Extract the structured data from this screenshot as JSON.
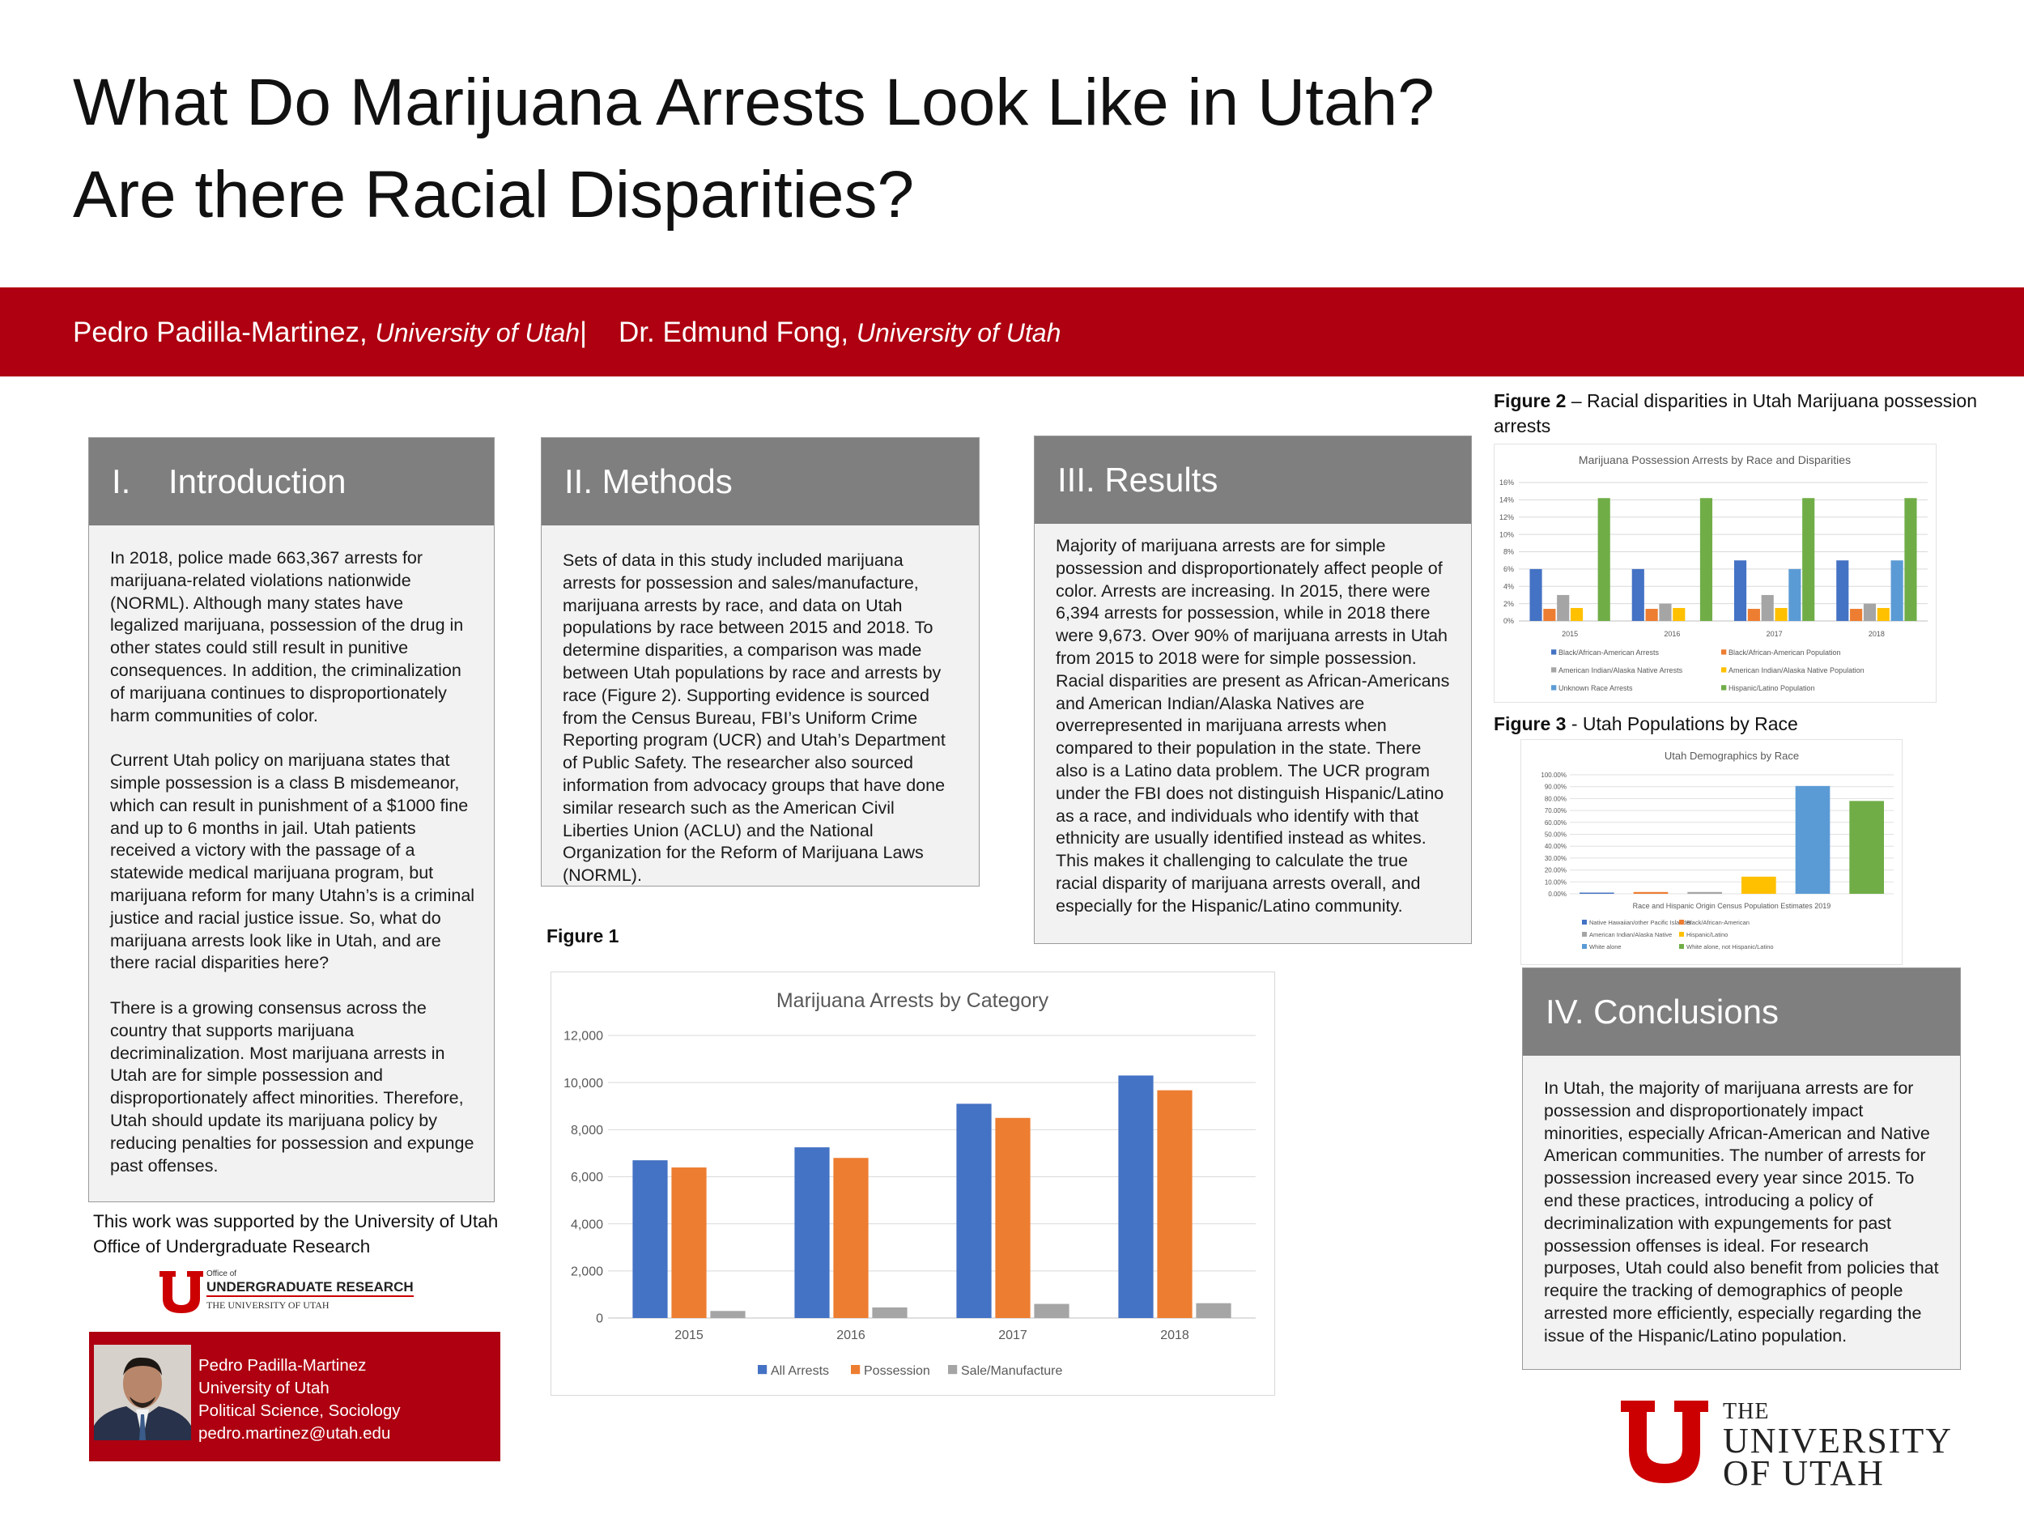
{
  "title": "What Do Marijuana Arrests Look Like in Utah? Are there Racial Disparities?",
  "authors": {
    "author1_name": "Pedro Padilla-Martinez,",
    "author1_affiliation": "University of Utah",
    "separator": "|",
    "author2_name": "Dr. Edmund Fong,",
    "author2_affiliation": "University of Utah"
  },
  "introduction": {
    "heading": "I.    Introduction",
    "body": "In 2018, police made 663,367 arrests for marijuana-related violations nationwide (NORML). Although many states have legalized marijuana, possession of the drug in other states could still result in punitive consequences. In addition, the criminalization of marijuana continues to disproportionately harm communities of color.\n\nCurrent Utah policy on marijuana states that simple possession is a class B misdemeanor, which can result in punishment of a $1000 fine and up to 6 months in jail. Utah patients received a victory with the passage of a statewide medical marijuana program, but marijuana reform for many Utahn’s is a criminal justice and racial justice issue. So, what do marijuana arrests look like in Utah, and are there racial disparities here?\n\nThere is a growing consensus across the country that supports marijuana decriminalization. Most marijuana arrests in Utah are for simple possession and disproportionately affect minorities. Therefore, Utah should update its marijuana policy by reducing penalties for possession and expunge past offenses."
  },
  "methods": {
    "heading": "II. Methods",
    "body": "Sets of data in this study included marijuana arrests for possession and sales/manufacture, marijuana arrests by race, and data on Utah populations by race between 2015 and 2018. To determine disparities, a comparison was made between Utah populations by race and arrests by race (Figure 2). Supporting evidence is sourced from the Census Bureau, FBI’s Uniform Crime Reporting program (UCR) and Utah’s Department of Public Safety. The researcher also sourced information from advocacy groups that have done similar research such as the American Civil Liberties Union (ACLU) and the National Organization for the Reform of Marijuana Laws (NORML)."
  },
  "results": {
    "heading": "III. Results",
    "body": "Majority of marijuana arrests are for simple possession and disproportionately affect people of color. Arrests are increasing. In 2015, there were 6,394 arrests for possession, while in 2018 there were 9,673. Over 90% of marijuana arrests in Utah from 2015 to 2018 were for simple possession. Racial disparities are present as African-Americans and American Indian/Alaska Natives are overrepresented in marijuana arrests when compared to their population in the state. There also is a Latino data problem. The UCR program under the FBI does not distinguish Hispanic/Latino as a race, and individuals who identify with that ethnicity are usually identified instead as whites. This makes it challenging to calculate the true racial disparity of marijuana arrests overall, and especially for the Hispanic/Latino community."
  },
  "conclusions": {
    "heading": "IV. Conclusions",
    "body": "In Utah, the majority of marijuana arrests are for possession and disproportionately impact minorities, especially African-American and Native American communities. The number of arrests for possession increased every year since 2015. To end these practices, introducing a policy of decriminalization with expungements for past possession offenses is ideal. For research purposes, Utah could also benefit from policies that require the tracking of demographics of people arrested more efficiently, especially regarding the issue of the Hispanic/Latino population."
  },
  "figure1_caption": "Figure 1",
  "figure2_caption": {
    "label": "Figure 2",
    "text": " – Racial disparities in Utah Marijuana possession arrests"
  },
  "figure3_caption": {
    "label": "Figure 3",
    "text": " - Utah Populations by Race"
  },
  "support": "This work was supported by the University of Utah Office of Undergraduate Research",
  "our_logo": {
    "small": "Office of",
    "main": "UNDERGRADUATE RESEARCH",
    "sub": "THE UNIVERSITY OF UTAH"
  },
  "university_logo": {
    "line1": "THE",
    "line2": "UNIVERSITY",
    "line3": "OF UTAH"
  },
  "contact": {
    "name": "Pedro Padilla-Martinez",
    "school": "University of Utah",
    "major": "Political Science, Sociology",
    "email": "pedro.martinez@utah.edu"
  },
  "colors": {
    "utah_red": "#ae0010",
    "header_gray": "#7f7f7f",
    "panel_gray": "#f2f2f2"
  },
  "chart_data": [
    {
      "type": "bar",
      "title": "Marijuana Arrests by Category",
      "categories": [
        "2015",
        "2016",
        "2017",
        "2018"
      ],
      "series": [
        {
          "name": "All Arrests",
          "values": [
            6700,
            7250,
            9100,
            10300
          ],
          "color": "#4472c4"
        },
        {
          "name": "Possession",
          "values": [
            6394,
            6800,
            8500,
            9673
          ],
          "color": "#ed7d31"
        },
        {
          "name": "Sale/Manufacture",
          "values": [
            300,
            450,
            600,
            630
          ],
          "color": "#a5a5a5"
        }
      ],
      "ylim": [
        0,
        12000
      ],
      "yticks": [
        "0",
        "2,000",
        "4,000",
        "6,000",
        "8,000",
        "10,000",
        "12,000"
      ],
      "grid": true,
      "legend": "bottom"
    },
    {
      "type": "bar",
      "title": "Marijuana Possession Arrests by Race and Disparities",
      "categories": [
        "2015",
        "2016",
        "2017",
        "2018"
      ],
      "series": [
        {
          "name": "Black/African-American Arrests",
          "values": [
            6,
            6,
            7,
            7
          ],
          "color": "#4472c4"
        },
        {
          "name": "Black/African-American Population",
          "values": [
            1.4,
            1.4,
            1.4,
            1.4
          ],
          "color": "#ed7d31"
        },
        {
          "name": "American Indian/Alaska Native Arrests",
          "values": [
            3,
            2,
            3,
            2
          ],
          "color": "#a5a5a5"
        },
        {
          "name": "American Indian/Alaska Native Population",
          "values": [
            1.5,
            1.5,
            1.5,
            1.5
          ],
          "color": "#ffc000"
        },
        {
          "name": "Unknown Race Arrests",
          "values": [
            0,
            0,
            6,
            7
          ],
          "color": "#5b9bd5"
        },
        {
          "name": "Hispanic/Latino Population",
          "values": [
            14.2,
            14.2,
            14.2,
            14.2
          ],
          "color": "#70ad47"
        }
      ],
      "ylim": [
        0,
        16
      ],
      "yticks": [
        "0%",
        "2%",
        "4%",
        "6%",
        "8%",
        "10%",
        "12%",
        "14%",
        "16%"
      ],
      "grid": true,
      "legend": "bottom"
    },
    {
      "type": "bar",
      "title": "Utah Demographics by Race",
      "xlabel": "Race and Hispanic Origin Census Population Estimates 2019",
      "categories": [
        "Native Hawaiian/other Pacific Islander",
        "Black/African-American",
        "American Indian/Alaska Native",
        "Hispanic/Latino",
        "White alone",
        "White alone, not Hispanic/Latino"
      ],
      "values": [
        1.0,
        1.5,
        1.5,
        14.4,
        90.6,
        78.0
      ],
      "colors": [
        "#4472c4",
        "#ed7d31",
        "#a5a5a5",
        "#ffc000",
        "#5b9bd5",
        "#70ad47"
      ],
      "ylim": [
        0,
        100
      ],
      "yticks": [
        "0.00%",
        "10.00%",
        "20.00%",
        "30.00%",
        "40.00%",
        "50.00%",
        "60.00%",
        "70.00%",
        "80.00%",
        "90.00%",
        "100.00%"
      ],
      "grid": true,
      "legend": "bottom"
    }
  ]
}
